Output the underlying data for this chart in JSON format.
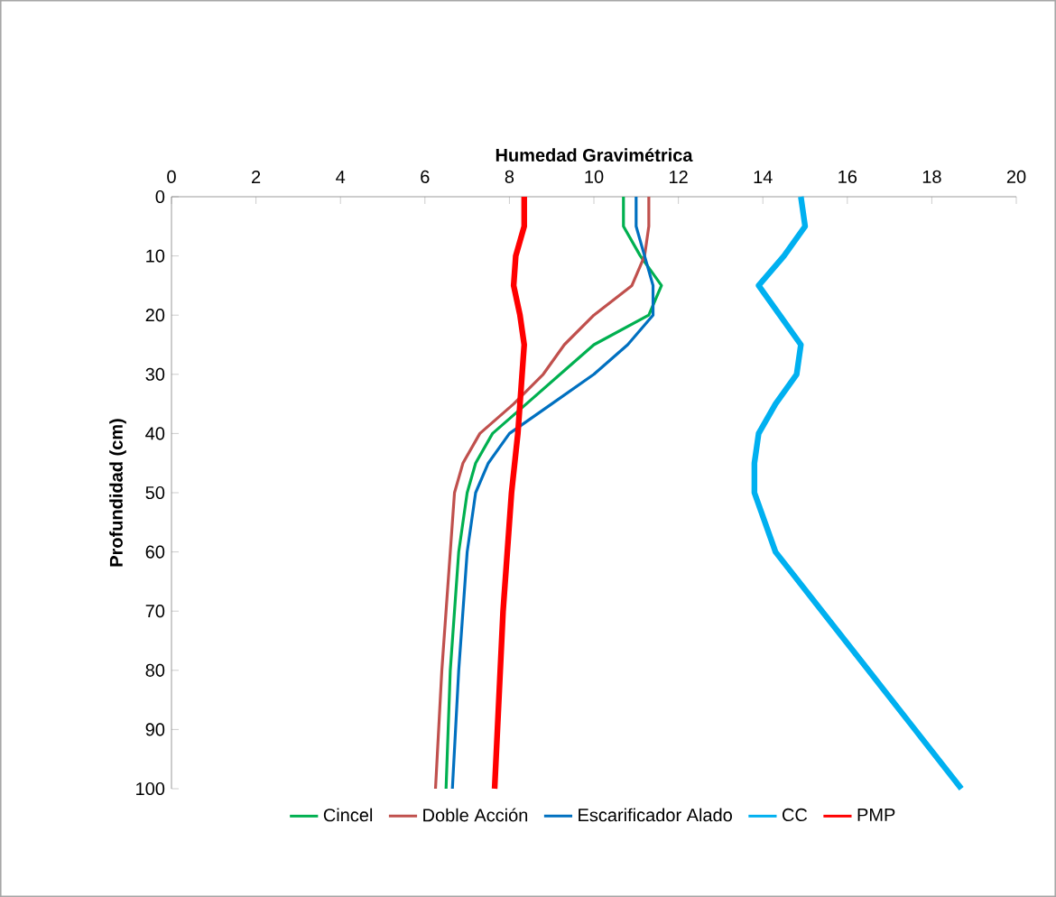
{
  "chart_data": {
    "type": "line",
    "xlabel": "Humedad Gravimétrica",
    "ylabel": "Profundidad (cm)",
    "xlim": [
      0,
      20
    ],
    "xticks": [
      0,
      2,
      4,
      6,
      8,
      10,
      12,
      14,
      16,
      18,
      20
    ],
    "ylim": [
      100,
      0
    ],
    "yticks": [
      0,
      10,
      20,
      30,
      40,
      50,
      60,
      70,
      80,
      90,
      100
    ],
    "legend": "bottom",
    "marker": "none",
    "line_style": "solid",
    "series": [
      {
        "name": "Cincel",
        "color": "#00b050",
        "x": [
          10.7,
          10.7,
          11.1,
          11.6,
          11.3,
          10.0,
          9.2,
          8.4,
          7.6,
          7.2,
          7.0,
          6.8,
          6.6,
          6.5
        ],
        "values": [
          0,
          5,
          10,
          15,
          20,
          25,
          30,
          35,
          40,
          45,
          50,
          60,
          80,
          100
        ]
      },
      {
        "name": "Doble Acción",
        "color": "#c0504d",
        "x": [
          11.3,
          11.3,
          11.2,
          10.9,
          10.0,
          9.3,
          8.8,
          8.1,
          7.3,
          6.9,
          6.7,
          6.6,
          6.4,
          6.25
        ],
        "values": [
          0,
          5,
          10,
          15,
          20,
          25,
          30,
          35,
          40,
          45,
          50,
          60,
          80,
          100
        ]
      },
      {
        "name": "Escarificador Alado",
        "color": "#0070c0",
        "x": [
          11.0,
          11.0,
          11.2,
          11.4,
          11.4,
          10.8,
          10.0,
          9.0,
          8.0,
          7.5,
          7.2,
          7.0,
          6.8,
          6.65
        ],
        "values": [
          0,
          5,
          10,
          15,
          20,
          25,
          30,
          35,
          40,
          45,
          50,
          60,
          80,
          100
        ]
      },
      {
        "name": "CC",
        "color": "#00b0f0",
        "x": [
          14.9,
          15.0,
          14.5,
          13.9,
          14.4,
          14.9,
          14.8,
          14.3,
          13.9,
          13.8,
          13.8,
          14.3,
          15.4,
          16.5,
          17.6,
          18.7
        ],
        "values": [
          0,
          5,
          10,
          15,
          20,
          25,
          30,
          35,
          40,
          45,
          50,
          60,
          70,
          80,
          90,
          100
        ]
      },
      {
        "name": "PMP",
        "color": "#ff0000",
        "x": [
          8.35,
          8.35,
          8.15,
          8.1,
          8.25,
          8.35,
          8.3,
          8.2,
          8.05,
          7.85,
          7.65
        ],
        "values": [
          0,
          5,
          10,
          15,
          20,
          25,
          30,
          40,
          50,
          70,
          100
        ]
      }
    ]
  }
}
